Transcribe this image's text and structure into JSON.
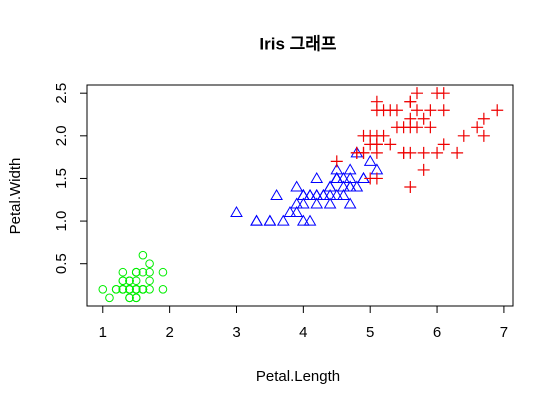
{
  "chart_data": {
    "type": "scatter",
    "title": "Iris 그래프",
    "x_label": "Petal.Length",
    "y_label": "Petal.Width",
    "xlim": [
      0.764,
      7.136
    ],
    "ylim": [
      0.004,
      2.596
    ],
    "xticks": [
      1,
      2,
      3,
      4,
      5,
      6,
      7
    ],
    "yticks": [
      0.5,
      {
        "value": 1,
        "label": "1.0"
      },
      1.5,
      {
        "value": 2,
        "label": "2.0"
      },
      2.5
    ],
    "series": [
      {
        "color": "#00ee00",
        "marker": "circle",
        "x": [
          1.4,
          1.4,
          1.3,
          1.5,
          1.4,
          1.7,
          1.4,
          1.5,
          1.4,
          1.5,
          1.5,
          1.6,
          1.4,
          1.1,
          1.2,
          1.5,
          1.3,
          1.4,
          1.7,
          1.5,
          1.7,
          1.5,
          1.0,
          1.7,
          1.9,
          1.6,
          1.6,
          1.5,
          1.4,
          1.6,
          1.6,
          1.5,
          1.5,
          1.4,
          1.5,
          1.2,
          1.3,
          1.4,
          1.3,
          1.5,
          1.3,
          1.3,
          1.3,
          1.6,
          1.9,
          1.4,
          1.6,
          1.4,
          1.5,
          1.4
        ],
        "values": [
          0.2,
          0.2,
          0.2,
          0.2,
          0.2,
          0.4,
          0.3,
          0.2,
          0.2,
          0.1,
          0.2,
          0.2,
          0.1,
          0.1,
          0.2,
          0.4,
          0.4,
          0.3,
          0.3,
          0.3,
          0.2,
          0.4,
          0.2,
          0.5,
          0.2,
          0.2,
          0.4,
          0.2,
          0.2,
          0.2,
          0.2,
          0.4,
          0.1,
          0.2,
          0.2,
          0.2,
          0.2,
          0.1,
          0.2,
          0.2,
          0.3,
          0.3,
          0.2,
          0.6,
          0.4,
          0.3,
          0.2,
          0.2,
          0.2,
          0.2
        ]
      },
      {
        "color": "#0000ff",
        "marker": "triangle",
        "x": [
          4.7,
          4.5,
          4.9,
          4.0,
          4.6,
          4.5,
          4.7,
          3.3,
          4.6,
          3.9,
          3.5,
          4.2,
          4.0,
          4.7,
          3.6,
          4.4,
          4.5,
          4.1,
          4.5,
          3.9,
          4.8,
          4.0,
          4.9,
          4.7,
          4.3,
          4.4,
          4.8,
          5.0,
          4.5,
          3.5,
          3.8,
          3.7,
          3.9,
          5.1,
          4.5,
          4.5,
          4.7,
          4.4,
          4.1,
          4.0,
          4.4,
          4.6,
          4.0,
          3.3,
          4.2,
          4.2,
          4.2,
          4.3,
          3.0,
          4.1
        ],
        "values": [
          1.4,
          1.5,
          1.5,
          1.3,
          1.5,
          1.3,
          1.6,
          1.0,
          1.3,
          1.4,
          1.0,
          1.5,
          1.0,
          1.4,
          1.3,
          1.4,
          1.5,
          1.0,
          1.5,
          1.1,
          1.8,
          1.3,
          1.5,
          1.2,
          1.3,
          1.4,
          1.4,
          1.7,
          1.5,
          1.0,
          1.1,
          1.0,
          1.2,
          1.6,
          1.5,
          1.6,
          1.5,
          1.3,
          1.3,
          1.3,
          1.2,
          1.4,
          1.2,
          1.0,
          1.3,
          1.2,
          1.3,
          1.3,
          1.1,
          1.3
        ]
      },
      {
        "color": "#ee0000",
        "marker": "plus",
        "x": [
          6.0,
          5.1,
          5.9,
          5.6,
          5.8,
          6.6,
          4.5,
          6.3,
          5.8,
          6.1,
          5.1,
          5.3,
          5.5,
          5.0,
          5.1,
          5.3,
          5.5,
          6.7,
          6.9,
          5.0,
          5.7,
          4.9,
          6.7,
          4.9,
          5.7,
          6.0,
          4.8,
          4.9,
          5.6,
          5.8,
          6.1,
          6.4,
          5.6,
          5.1,
          5.6,
          6.1,
          5.6,
          5.5,
          4.8,
          5.4,
          5.6,
          5.1,
          5.1,
          5.9,
          5.7,
          5.2,
          5.0,
          5.2,
          5.4,
          5.1
        ],
        "values": [
          2.5,
          1.9,
          2.1,
          1.8,
          2.2,
          2.1,
          1.7,
          1.8,
          1.8,
          2.5,
          2.0,
          1.9,
          2.1,
          2.0,
          2.4,
          2.3,
          1.8,
          2.2,
          2.3,
          1.5,
          2.3,
          2.0,
          2.0,
          1.8,
          2.1,
          1.8,
          1.8,
          1.8,
          2.1,
          1.6,
          1.9,
          2.0,
          2.2,
          1.5,
          1.4,
          2.3,
          2.4,
          1.8,
          1.8,
          2.1,
          2.4,
          2.3,
          1.9,
          2.3,
          2.5,
          2.3,
          1.9,
          2.0,
          2.3,
          1.8
        ]
      }
    ]
  }
}
